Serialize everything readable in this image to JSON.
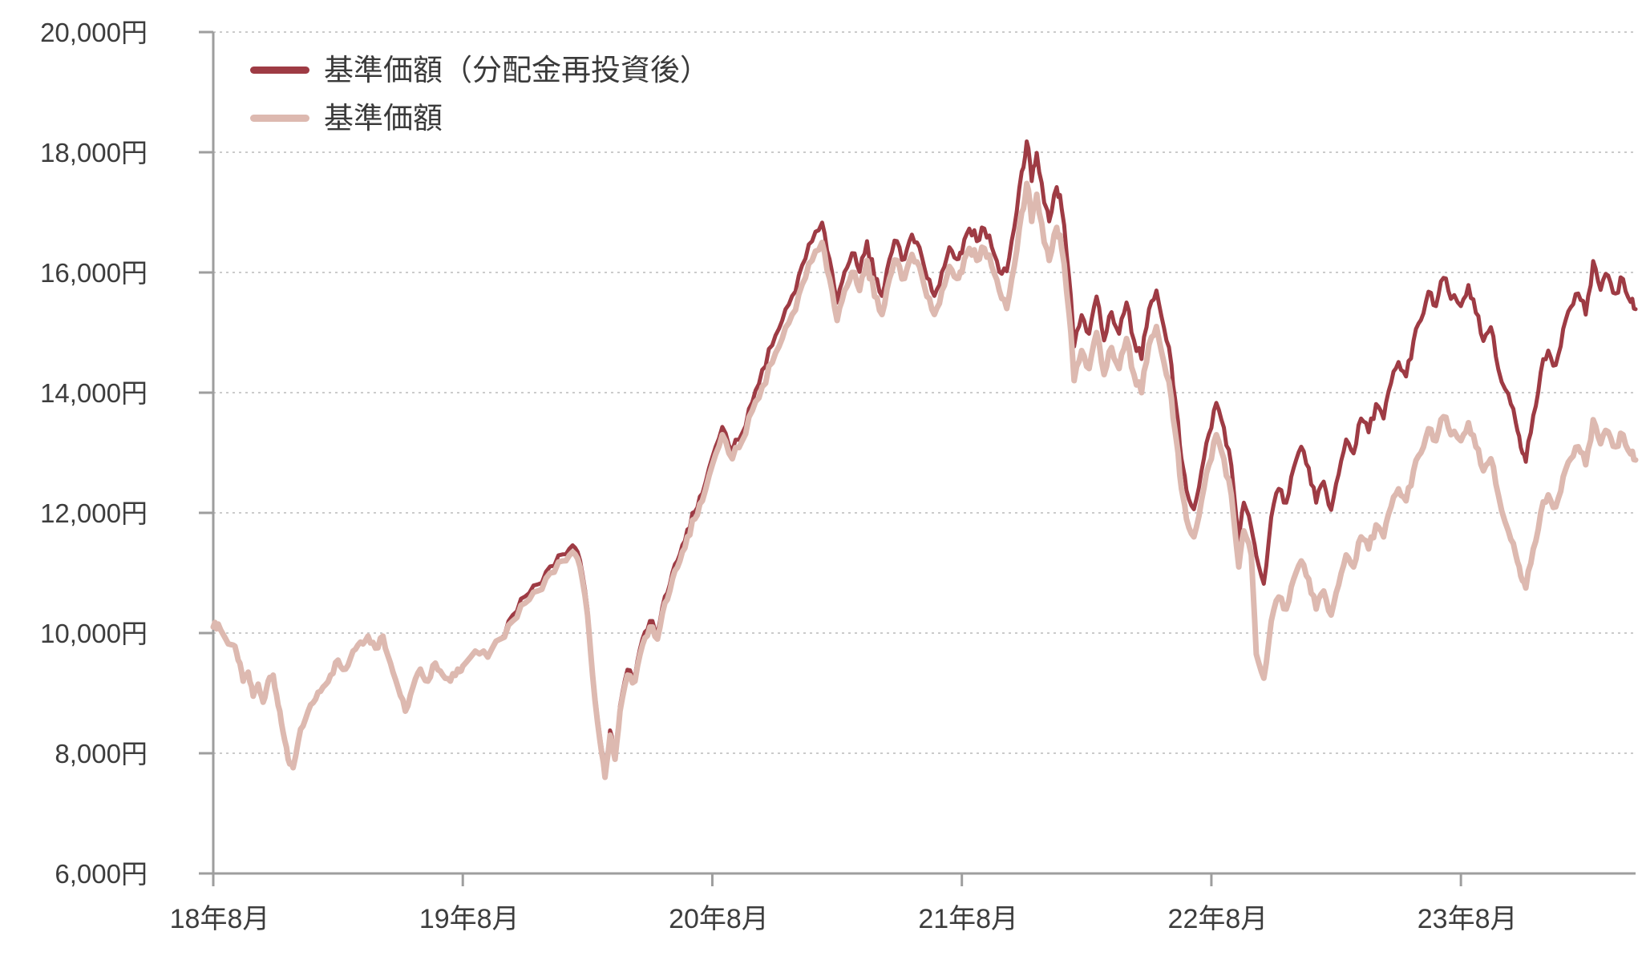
{
  "chart_data": {
    "type": "line",
    "title": "",
    "x_unit": "years since 2018-08 (month-end)",
    "grid": true,
    "legend_position": "top-left",
    "background": "#ffffff",
    "axis_color": "#9e9e9e",
    "grid_color": "#cbcbcb",
    "label_color": "#3d3d3d",
    "x_axis": {
      "tick_positions": [
        0,
        1,
        2,
        3,
        4,
        5
      ],
      "tick_labels": [
        "18年8月",
        "19年8月",
        "20年8月",
        "21年8月",
        "22年8月",
        "23年8月"
      ],
      "min": 0,
      "max": 5.7
    },
    "y_axis": {
      "min": 6000,
      "max": 20000,
      "step": 2000,
      "unit": "円",
      "tick_labels": [
        "6,000円",
        "8,000円",
        "10,000円",
        "12,000円",
        "14,000円",
        "16,000円",
        "18,000円",
        "20,000円"
      ]
    },
    "x": [
      0.0,
      0.02,
      0.05,
      0.08,
      0.1,
      0.12,
      0.14,
      0.16,
      0.18,
      0.2,
      0.22,
      0.24,
      0.26,
      0.28,
      0.3,
      0.32,
      0.35,
      0.38,
      0.41,
      0.44,
      0.47,
      0.5,
      0.53,
      0.56,
      0.59,
      0.62,
      0.65,
      0.68,
      0.71,
      0.74,
      0.77,
      0.8,
      0.83,
      0.86,
      0.89,
      0.92,
      0.95,
      0.98,
      1.0,
      1.05,
      1.1,
      1.15,
      1.2,
      1.25,
      1.3,
      1.35,
      1.4,
      1.44,
      1.47,
      1.5,
      1.52,
      1.55,
      1.57,
      1.59,
      1.61,
      1.63,
      1.66,
      1.69,
      1.72,
      1.75,
      1.78,
      1.81,
      1.84,
      1.87,
      1.9,
      1.93,
      1.96,
      2.0,
      2.04,
      2.08,
      2.12,
      2.16,
      2.2,
      2.24,
      2.28,
      2.32,
      2.36,
      2.4,
      2.44,
      2.47,
      2.5,
      2.53,
      2.56,
      2.59,
      2.62,
      2.65,
      2.68,
      2.71,
      2.74,
      2.77,
      2.8,
      2.83,
      2.86,
      2.89,
      2.92,
      2.95,
      2.98,
      3.0,
      3.03,
      3.06,
      3.09,
      3.12,
      3.15,
      3.18,
      3.21,
      3.24,
      3.26,
      3.28,
      3.3,
      3.33,
      3.35,
      3.38,
      3.4,
      3.43,
      3.45,
      3.48,
      3.51,
      3.54,
      3.57,
      3.6,
      3.63,
      3.66,
      3.69,
      3.72,
      3.75,
      3.78,
      3.81,
      3.84,
      3.86,
      3.88,
      3.9,
      3.93,
      3.96,
      3.99,
      4.02,
      4.05,
      4.08,
      4.11,
      4.13,
      4.16,
      4.18,
      4.21,
      4.24,
      4.27,
      4.3,
      4.33,
      4.36,
      4.39,
      4.42,
      4.45,
      4.48,
      4.51,
      4.54,
      4.57,
      4.6,
      4.63,
      4.66,
      4.69,
      4.72,
      4.75,
      4.78,
      4.81,
      4.84,
      4.87,
      4.9,
      4.93,
      4.96,
      5.0,
      5.03,
      5.06,
      5.09,
      5.12,
      5.15,
      5.19,
      5.22,
      5.24,
      5.26,
      5.29,
      5.32,
      5.35,
      5.38,
      5.41,
      5.44,
      5.47,
      5.5,
      5.53,
      5.56,
      5.59,
      5.62,
      5.65,
      5.68,
      5.7
    ],
    "series": [
      {
        "name": "基準価額（分配金再投資後）",
        "color": "#9e3b44",
        "stroke_width": 5,
        "values": [
          10100,
          10150,
          9900,
          9800,
          9550,
          9200,
          9350,
          8950,
          9150,
          8850,
          9200,
          9300,
          8800,
          8350,
          7900,
          7760,
          8400,
          8700,
          8900,
          9100,
          9300,
          9550,
          9400,
          9700,
          9850,
          9950,
          9750,
          9950,
          9500,
          9100,
          8700,
          9100,
          9400,
          9200,
          9500,
          9300,
          9200,
          9400,
          9450,
          9700,
          9600,
          9900,
          10300,
          10610,
          10810,
          11110,
          11310,
          11460,
          11210,
          10400,
          9390,
          8280,
          7680,
          8380,
          7980,
          8790,
          9390,
          9290,
          9900,
          10200,
          10000,
          10610,
          11010,
          11310,
          11720,
          12020,
          12320,
          12930,
          13430,
          13030,
          13330,
          13840,
          14380,
          14790,
          15200,
          15610,
          16120,
          16520,
          16830,
          16220,
          15500,
          16010,
          16320,
          16010,
          16520,
          15910,
          15610,
          16220,
          16520,
          16220,
          16630,
          16420,
          15910,
          15610,
          16010,
          16420,
          16220,
          16320,
          16730,
          16520,
          16730,
          16420,
          16010,
          16020,
          16740,
          17680,
          18180,
          17520,
          17990,
          17160,
          16850,
          17420,
          17060,
          15910,
          14770,
          15290,
          14980,
          15600,
          14870,
          15340,
          14980,
          15500,
          14870,
          14560,
          15390,
          15700,
          15080,
          14460,
          13730,
          12900,
          12380,
          12060,
          12690,
          13310,
          13830,
          13420,
          12790,
          11540,
          12170,
          11750,
          11290,
          10820,
          11930,
          12400,
          12170,
          12750,
          13100,
          12750,
          12170,
          12520,
          12050,
          12640,
          13220,
          12990,
          13570,
          13340,
          13810,
          13570,
          14160,
          14510,
          14270,
          14860,
          15210,
          15680,
          15440,
          15910,
          15560,
          15440,
          15790,
          15330,
          14860,
          15090,
          14390,
          13980,
          13500,
          13090,
          12850,
          13620,
          14340,
          14700,
          14460,
          15060,
          15420,
          15650,
          15300,
          16190,
          15710,
          15950,
          15650,
          15890,
          15510,
          15390
        ]
      },
      {
        "name": "基準価額",
        "color": "#ddb9b0",
        "stroke_width": 7,
        "values": [
          10100,
          10150,
          9900,
          9800,
          9550,
          9200,
          9350,
          8950,
          9150,
          8850,
          9200,
          9300,
          8800,
          8350,
          7900,
          7760,
          8400,
          8700,
          8900,
          9100,
          9300,
          9550,
          9400,
          9700,
          9850,
          9950,
          9750,
          9950,
          9500,
          9100,
          8700,
          9100,
          9400,
          9200,
          9500,
          9300,
          9200,
          9400,
          9450,
          9700,
          9600,
          9900,
          10200,
          10500,
          10700,
          11000,
          11200,
          11350,
          11100,
          10300,
          9300,
          8200,
          7600,
          8300,
          7900,
          8700,
          9300,
          9200,
          9800,
          10100,
          9900,
          10500,
          10900,
          11200,
          11600,
          11900,
          12200,
          12800,
          13300,
          12900,
          13200,
          13700,
          14100,
          14500,
          14900,
          15300,
          15800,
          16200,
          16500,
          15900,
          15200,
          15700,
          16000,
          15700,
          16200,
          15600,
          15300,
          15900,
          16200,
          15900,
          16300,
          16100,
          15600,
          15300,
          15700,
          16100,
          15900,
          16000,
          16400,
          16200,
          16400,
          16100,
          15700,
          15400,
          16100,
          17000,
          17480,
          16850,
          17300,
          16500,
          16200,
          16750,
          16400,
          15300,
          14200,
          14700,
          14400,
          15000,
          14300,
          14750,
          14400,
          14900,
          14300,
          14000,
          14800,
          15100,
          14500,
          13900,
          13200,
          12400,
          11900,
          11600,
          12200,
          12800,
          13300,
          12900,
          12300,
          11100,
          11700,
          11300,
          9650,
          9250,
          10200,
          10600,
          10400,
          10900,
          11200,
          10900,
          10400,
          10700,
          10300,
          10800,
          11300,
          11100,
          11600,
          11400,
          11800,
          11600,
          12100,
          12400,
          12200,
          12700,
          13000,
          13400,
          13200,
          13600,
          13300,
          13200,
          13500,
          13100,
          12700,
          12900,
          12300,
          11700,
          11300,
          10950,
          10750,
          11400,
          12000,
          12300,
          12100,
          12600,
          12900,
          13100,
          12800,
          13550,
          13150,
          13350,
          13100,
          13300,
          12980,
          12880
        ]
      }
    ]
  },
  "legend": {
    "items": [
      {
        "label": "基準価額（分配金再投資後）",
        "color": "#9e3b44"
      },
      {
        "label": "基準価額",
        "color": "#ddb9b0"
      }
    ]
  }
}
